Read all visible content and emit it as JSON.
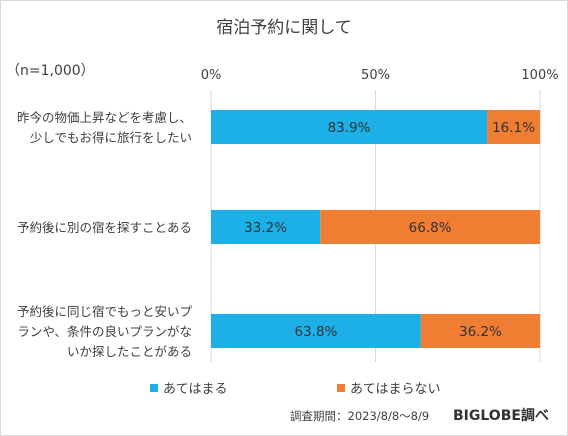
{
  "chart_data": {
    "type": "bar",
    "orientation": "horizontal",
    "stacked": true,
    "title": "宿泊予約に関して",
    "note": "（n=1,000）",
    "xticks": [
      "0%",
      "50%",
      "100%"
    ],
    "xlim": [
      0,
      100
    ],
    "grid": true,
    "categories": [
      "昨今の物価上昇などを考慮し、\n少しでもお得に旅行をしたい",
      "予約後に別の宿を探すことある",
      "予約後に同じ宿でもっと安いプ\nランや、条件の良いプランがな\nいか探したことがある"
    ],
    "series": [
      {
        "name": "あてはまる",
        "values": [
          83.9,
          33.2,
          63.8
        ],
        "labels": [
          "83.9%",
          "33.2%",
          "63.8%"
        ],
        "color": "#1cb0e6"
      },
      {
        "name": "あてはまらない",
        "values": [
          16.1,
          66.8,
          36.2
        ],
        "labels": [
          "16.1%",
          "66.8%",
          "36.2%"
        ],
        "color": "#ef7d32"
      }
    ],
    "legend_position": "bottom",
    "source": "調査期間：2023/8/8～8/9",
    "brand": "BIGLOBE調べ"
  }
}
